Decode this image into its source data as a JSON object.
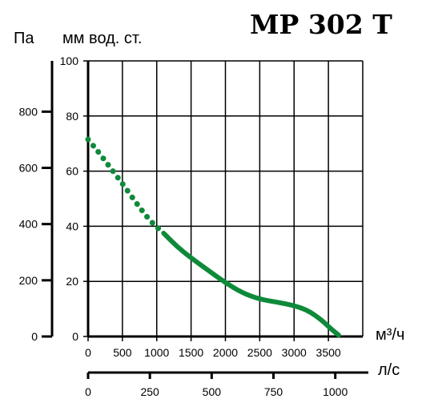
{
  "chart_data": {
    "type": "line",
    "title": "MP 302 T",
    "pressure_unit_pa": "Па",
    "pressure_unit_mm": "мм вод. ст.",
    "flow_unit_m3h": "м³/ч",
    "flow_unit_ls": "л/с",
    "x_axis_m3h": {
      "range": [
        0,
        4000
      ],
      "ticks": [
        0,
        500,
        1000,
        1500,
        2000,
        2500,
        3000,
        3500
      ]
    },
    "x_axis_ls": {
      "ticks": [
        0,
        250,
        500,
        750,
        1000
      ]
    },
    "y_axis_mm": {
      "range": [
        0,
        100
      ],
      "ticks": [
        0,
        20,
        40,
        60,
        80,
        100
      ]
    },
    "y_axis_pa": {
      "ticks": [
        0,
        200,
        400,
        600,
        800
      ]
    },
    "grid": true,
    "colors": {
      "curve": "#0e8a3a",
      "axis": "#000000"
    },
    "series": [
      {
        "segment": "dotted",
        "points": [
          [
            0,
            71.5
          ],
          [
            150,
            67
          ],
          [
            300,
            62
          ],
          [
            500,
            55.5
          ],
          [
            700,
            48.5
          ],
          [
            900,
            42
          ],
          [
            1100,
            37.5
          ]
        ]
      },
      {
        "segment": "solid",
        "points": [
          [
            1100,
            37.5
          ],
          [
            1300,
            32.5
          ],
          [
            1500,
            28.5
          ],
          [
            1750,
            24
          ],
          [
            2000,
            19.5
          ],
          [
            2250,
            15.8
          ],
          [
            2500,
            13.5
          ],
          [
            2750,
            12.5
          ],
          [
            3000,
            11.2
          ],
          [
            3200,
            9.5
          ],
          [
            3400,
            6
          ],
          [
            3550,
            2.5
          ],
          [
            3650,
            0.5
          ]
        ]
      }
    ]
  }
}
